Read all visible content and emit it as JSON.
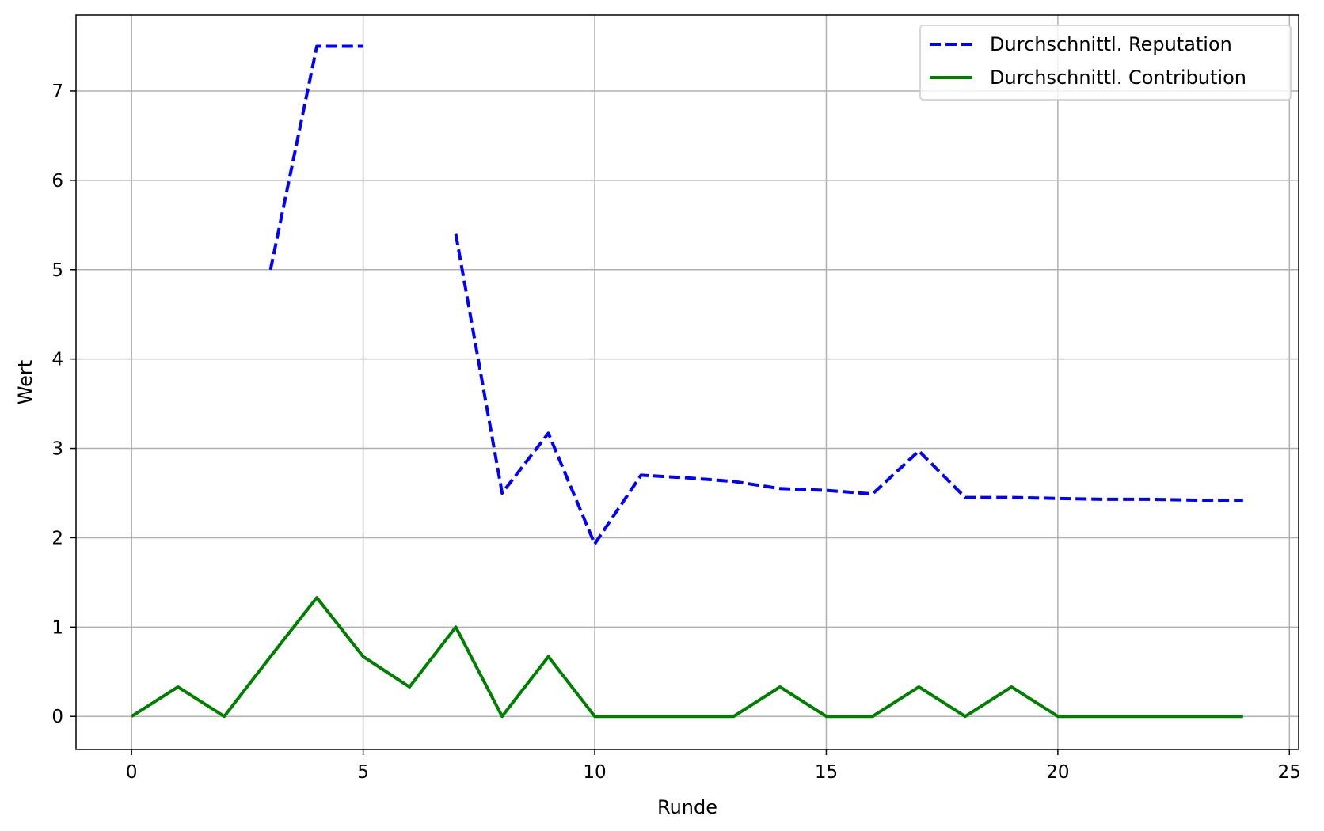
{
  "chart_data": {
    "type": "line",
    "xlabel": "Runde",
    "ylabel": "Wert",
    "xlim": [
      -1.2,
      25.2
    ],
    "ylim": [
      -0.37,
      7.85
    ],
    "xticks": [
      0,
      5,
      10,
      15,
      20,
      25
    ],
    "yticks": [
      0,
      1,
      2,
      3,
      4,
      5,
      6,
      7
    ],
    "grid": true,
    "legend_position": "top-right",
    "x": [
      0,
      1,
      2,
      3,
      4,
      5,
      6,
      7,
      8,
      9,
      10,
      11,
      12,
      13,
      14,
      15,
      16,
      17,
      18,
      19,
      20,
      21,
      22,
      23,
      24
    ],
    "series": [
      {
        "name": "Durchschnittl. Reputation",
        "color": "#0000ff",
        "style": "dashed",
        "values": [
          null,
          null,
          null,
          5.0,
          7.5,
          7.5,
          null,
          5.4,
          2.5,
          3.17,
          1.93,
          2.7,
          2.67,
          2.63,
          2.55,
          2.53,
          2.49,
          2.97,
          2.45,
          2.45,
          2.44,
          2.43,
          2.43,
          2.42,
          2.42
        ]
      },
      {
        "name": "Durchschnittl. Contribution",
        "color": "#008000",
        "style": "solid",
        "values": [
          0,
          0.33,
          0,
          0.67,
          1.33,
          0.67,
          0.33,
          1.0,
          0,
          0.67,
          0,
          0,
          0,
          0,
          0.33,
          0,
          0,
          0.33,
          0,
          0.33,
          0,
          0,
          0,
          0,
          0
        ]
      }
    ]
  }
}
